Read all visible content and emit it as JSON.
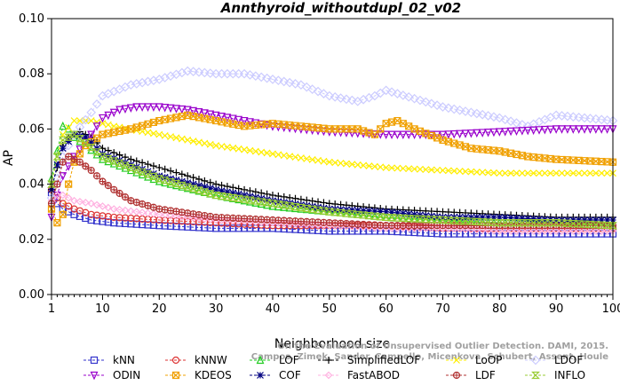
{
  "chart_data": {
    "type": "line",
    "title": "Annthyroid_withoutdupl_02_v02",
    "xlabel": "Neighborhood size",
    "ylabel": "AP",
    "xlim": [
      1,
      100
    ],
    "ylim": [
      0.0,
      0.1
    ],
    "xticks": [
      1,
      10,
      20,
      30,
      40,
      50,
      60,
      70,
      80,
      90,
      100
    ],
    "yticks": [
      "0.00",
      "0.02",
      "0.04",
      "0.06",
      "0.08",
      "0.10"
    ],
    "grid": false,
    "legend_position": "bottom",
    "watermark": {
      "line1": "On the Evaluation of Unsupervised Outlier Detection. DAMI, 2015.",
      "line2": "Campos, Zimek, Sander, Campello, Micenkova, Schubert, Assent, Houle"
    },
    "series": [
      {
        "name": "kNN",
        "color": "#3333cc",
        "marker": "square",
        "points": [
          [
            1,
            0.037
          ],
          [
            2,
            0.033
          ],
          [
            3,
            0.031
          ],
          [
            5,
            0.029
          ],
          [
            8,
            0.027
          ],
          [
            12,
            0.026
          ],
          [
            20,
            0.025
          ],
          [
            30,
            0.024
          ],
          [
            40,
            0.024
          ],
          [
            50,
            0.023
          ],
          [
            60,
            0.023
          ],
          [
            70,
            0.022
          ],
          [
            80,
            0.022
          ],
          [
            90,
            0.022
          ],
          [
            100,
            0.022
          ]
        ]
      },
      {
        "name": "kNNW",
        "color": "#dd3333",
        "marker": "circle",
        "points": [
          [
            1,
            0.038
          ],
          [
            2,
            0.035
          ],
          [
            3,
            0.033
          ],
          [
            5,
            0.031
          ],
          [
            8,
            0.029
          ],
          [
            12,
            0.028
          ],
          [
            20,
            0.027
          ],
          [
            30,
            0.026
          ],
          [
            40,
            0.025
          ],
          [
            50,
            0.025
          ],
          [
            60,
            0.025
          ],
          [
            70,
            0.024
          ],
          [
            80,
            0.024
          ],
          [
            90,
            0.024
          ],
          [
            100,
            0.024
          ]
        ]
      },
      {
        "name": "LOF",
        "color": "#22cc22",
        "marker": "triangle-up",
        "points": [
          [
            1,
            0.042
          ],
          [
            2,
            0.052
          ],
          [
            3,
            0.061
          ],
          [
            4,
            0.06
          ],
          [
            5,
            0.057
          ],
          [
            7,
            0.054
          ],
          [
            10,
            0.049
          ],
          [
            15,
            0.045
          ],
          [
            20,
            0.041
          ],
          [
            30,
            0.036
          ],
          [
            40,
            0.032
          ],
          [
            50,
            0.03
          ],
          [
            60,
            0.028
          ],
          [
            70,
            0.027
          ],
          [
            80,
            0.026
          ],
          [
            90,
            0.026
          ],
          [
            100,
            0.025
          ]
        ]
      },
      {
        "name": "SimplifiedLOF",
        "color": "#000000",
        "marker": "plus",
        "points": [
          [
            1,
            0.038
          ],
          [
            2,
            0.046
          ],
          [
            3,
            0.054
          ],
          [
            4,
            0.057
          ],
          [
            6,
            0.059
          ],
          [
            8,
            0.057
          ],
          [
            10,
            0.053
          ],
          [
            15,
            0.049
          ],
          [
            20,
            0.046
          ],
          [
            30,
            0.04
          ],
          [
            40,
            0.036
          ],
          [
            50,
            0.033
          ],
          [
            60,
            0.031
          ],
          [
            70,
            0.03
          ],
          [
            80,
            0.029
          ],
          [
            90,
            0.028
          ],
          [
            100,
            0.028
          ]
        ]
      },
      {
        "name": "LoOP",
        "color": "#ffee00",
        "marker": "cross",
        "points": [
          [
            1,
            0.04
          ],
          [
            2,
            0.05
          ],
          [
            3,
            0.058
          ],
          [
            5,
            0.063
          ],
          [
            8,
            0.063
          ],
          [
            12,
            0.061
          ],
          [
            20,
            0.058
          ],
          [
            30,
            0.054
          ],
          [
            40,
            0.051
          ],
          [
            50,
            0.048
          ],
          [
            60,
            0.046
          ],
          [
            70,
            0.045
          ],
          [
            80,
            0.044
          ],
          [
            90,
            0.044
          ],
          [
            100,
            0.044
          ]
        ]
      },
      {
        "name": "LDOF",
        "color": "#ccccff",
        "marker": "diamond",
        "points": [
          [
            1,
            0.035
          ],
          [
            2,
            0.042
          ],
          [
            3,
            0.05
          ],
          [
            5,
            0.058
          ],
          [
            8,
            0.066
          ],
          [
            10,
            0.072
          ],
          [
            15,
            0.076
          ],
          [
            20,
            0.078
          ],
          [
            25,
            0.081
          ],
          [
            30,
            0.08
          ],
          [
            35,
            0.08
          ],
          [
            40,
            0.078
          ],
          [
            45,
            0.076
          ],
          [
            50,
            0.072
          ],
          [
            55,
            0.07
          ],
          [
            58,
            0.072
          ],
          [
            60,
            0.074
          ],
          [
            65,
            0.071
          ],
          [
            70,
            0.068
          ],
          [
            80,
            0.064
          ],
          [
            85,
            0.061
          ],
          [
            90,
            0.065
          ],
          [
            95,
            0.064
          ],
          [
            100,
            0.063
          ]
        ]
      },
      {
        "name": "ODIN",
        "color": "#9900cc",
        "marker": "triangle-down",
        "points": [
          [
            1,
            0.028
          ],
          [
            2,
            0.036
          ],
          [
            3,
            0.043
          ],
          [
            5,
            0.05
          ],
          [
            8,
            0.058
          ],
          [
            10,
            0.064
          ],
          [
            13,
            0.067
          ],
          [
            16,
            0.068
          ],
          [
            20,
            0.068
          ],
          [
            25,
            0.067
          ],
          [
            30,
            0.065
          ],
          [
            35,
            0.063
          ],
          [
            40,
            0.061
          ],
          [
            45,
            0.06
          ],
          [
            50,
            0.059
          ],
          [
            60,
            0.058
          ],
          [
            70,
            0.058
          ],
          [
            80,
            0.059
          ],
          [
            90,
            0.06
          ],
          [
            100,
            0.06
          ]
        ]
      },
      {
        "name": "KDEOS",
        "color": "#f0a000",
        "marker": "boxed-x",
        "points": [
          [
            1,
            0.031
          ],
          [
            2,
            0.026
          ],
          [
            3,
            0.029
          ],
          [
            4,
            0.04
          ],
          [
            5,
            0.048
          ],
          [
            7,
            0.054
          ],
          [
            10,
            0.058
          ],
          [
            15,
            0.06
          ],
          [
            20,
            0.063
          ],
          [
            25,
            0.065
          ],
          [
            30,
            0.063
          ],
          [
            35,
            0.061
          ],
          [
            40,
            0.062
          ],
          [
            45,
            0.061
          ],
          [
            50,
            0.06
          ],
          [
            55,
            0.06
          ],
          [
            58,
            0.058
          ],
          [
            60,
            0.062
          ],
          [
            62,
            0.063
          ],
          [
            65,
            0.06
          ],
          [
            70,
            0.056
          ],
          [
            75,
            0.053
          ],
          [
            80,
            0.052
          ],
          [
            85,
            0.05
          ],
          [
            90,
            0.049
          ],
          [
            100,
            0.048
          ]
        ]
      },
      {
        "name": "COF",
        "color": "#000080",
        "marker": "asterisk",
        "points": [
          [
            1,
            0.038
          ],
          [
            2,
            0.047
          ],
          [
            3,
            0.053
          ],
          [
            5,
            0.058
          ],
          [
            7,
            0.057
          ],
          [
            10,
            0.051
          ],
          [
            15,
            0.047
          ],
          [
            20,
            0.043
          ],
          [
            30,
            0.038
          ],
          [
            40,
            0.034
          ],
          [
            50,
            0.031
          ],
          [
            60,
            0.03
          ],
          [
            70,
            0.028
          ],
          [
            80,
            0.028
          ],
          [
            90,
            0.027
          ],
          [
            100,
            0.027
          ]
        ]
      },
      {
        "name": "FastABOD",
        "color": "#ffb0e0",
        "marker": "diamond-small",
        "points": [
          [
            1,
            0.034
          ],
          [
            2,
            0.036
          ],
          [
            3,
            0.036
          ],
          [
            5,
            0.034
          ],
          [
            8,
            0.033
          ],
          [
            12,
            0.031
          ],
          [
            20,
            0.029
          ],
          [
            30,
            0.027
          ],
          [
            40,
            0.026
          ],
          [
            50,
            0.025
          ],
          [
            60,
            0.024
          ],
          [
            70,
            0.024
          ],
          [
            80,
            0.023
          ],
          [
            90,
            0.023
          ],
          [
            100,
            0.023
          ]
        ]
      },
      {
        "name": "LDF",
        "color": "#b03030",
        "marker": "circle-dot",
        "points": [
          [
            1,
            0.033
          ],
          [
            2,
            0.04
          ],
          [
            3,
            0.048
          ],
          [
            4,
            0.05
          ],
          [
            6,
            0.048
          ],
          [
            8,
            0.045
          ],
          [
            10,
            0.041
          ],
          [
            12,
            0.038
          ],
          [
            15,
            0.034
          ],
          [
            20,
            0.031
          ],
          [
            30,
            0.028
          ],
          [
            40,
            0.027
          ],
          [
            50,
            0.026
          ],
          [
            60,
            0.025
          ],
          [
            70,
            0.025
          ],
          [
            80,
            0.025
          ],
          [
            90,
            0.025
          ],
          [
            100,
            0.025
          ]
        ]
      },
      {
        "name": "INFLO",
        "color": "#99cc33",
        "marker": "hourglass",
        "points": [
          [
            1,
            0.04
          ],
          [
            2,
            0.05
          ],
          [
            3,
            0.056
          ],
          [
            5,
            0.058
          ],
          [
            7,
            0.055
          ],
          [
            10,
            0.05
          ],
          [
            15,
            0.046
          ],
          [
            20,
            0.042
          ],
          [
            30,
            0.036
          ],
          [
            40,
            0.033
          ],
          [
            50,
            0.03
          ],
          [
            60,
            0.028
          ],
          [
            70,
            0.027
          ],
          [
            80,
            0.026
          ],
          [
            90,
            0.026
          ],
          [
            100,
            0.025
          ]
        ]
      }
    ],
    "legend_rows": [
      [
        "kNN",
        "kNNW",
        "LOF",
        "SimplifiedLOF",
        "LoOP",
        "LDOF"
      ],
      [
        "ODIN",
        "KDEOS",
        "COF",
        "FastABOD",
        "LDF",
        "INFLO"
      ]
    ]
  }
}
